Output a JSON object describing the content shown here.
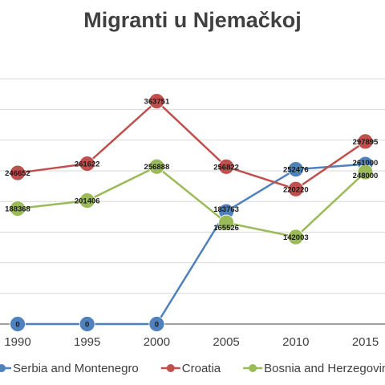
{
  "chart_data": {
    "type": "line",
    "title": "Migranti u Njemačkoj",
    "x": [
      "1990",
      "1995",
      "2000",
      "2005",
      "2010",
      "2015"
    ],
    "series": [
      {
        "name": "Serbia and Montenegro",
        "color": "#4f81bd",
        "values": [
          0,
          0,
          0,
          183763,
          252476,
          261000
        ]
      },
      {
        "name": "Croatia",
        "color": "#c0504d",
        "values": [
          246652,
          261622,
          363751,
          256822,
          220220,
          297895
        ]
      },
      {
        "name": "Bosnia and Herzegovina",
        "color": "#9bbb59",
        "values": [
          188368,
          201406,
          256888,
          165526,
          142003,
          248000
        ]
      }
    ],
    "gridlines": true,
    "legend_position": "bottom"
  }
}
